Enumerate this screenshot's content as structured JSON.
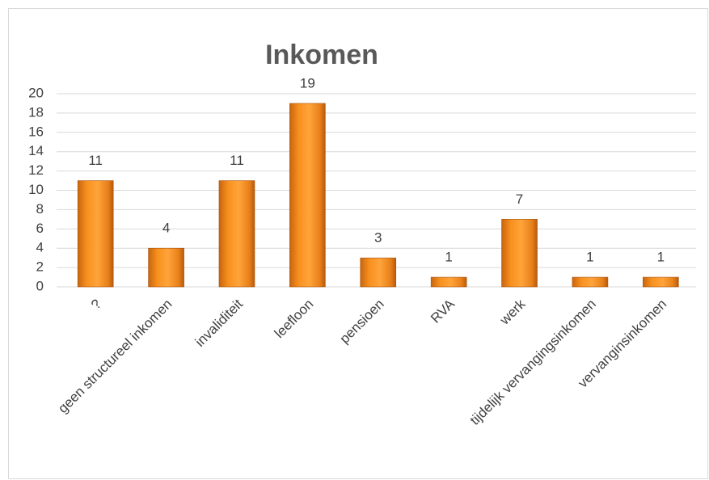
{
  "chart_data": {
    "type": "bar",
    "title": "Inkomen",
    "categories": [
      "?",
      "geen structureel inkomen",
      "invaliditeit",
      "leefloon",
      "pensioen",
      "RVA",
      "werk",
      "tijdelijk vervangingsinkomen",
      "vervanginsinkomen"
    ],
    "values": [
      11,
      4,
      11,
      19,
      3,
      1,
      7,
      1,
      1
    ],
    "color": "#f7901e",
    "ylim": [
      0,
      20
    ],
    "yticks": [
      0,
      2,
      4,
      6,
      8,
      10,
      12,
      14,
      16,
      18,
      20
    ],
    "grid": true
  }
}
